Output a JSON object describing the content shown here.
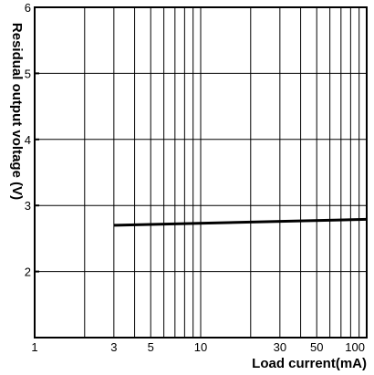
{
  "chart_data": {
    "type": "line",
    "title": "",
    "xlabel": "Load current(mA)",
    "ylabel": "Residual output voltage (V)",
    "x_scale": "log",
    "xlim": [
      1,
      100
    ],
    "ylim": [
      1,
      6
    ],
    "x_tick_labels": [
      "1",
      "3",
      "5",
      "10",
      "30",
      "50",
      "100"
    ],
    "x_tick_values": [
      1,
      3,
      5,
      10,
      30,
      50,
      100
    ],
    "y_tick_labels": [
      "2",
      "3",
      "4",
      "5",
      "6"
    ],
    "y_tick_values": [
      2,
      3,
      4,
      5,
      6
    ],
    "grid": true,
    "legend": "none",
    "series": [
      {
        "x": [
          3,
          100
        ],
        "y": [
          2.7,
          2.79
        ],
        "color": "#000000"
      }
    ]
  }
}
